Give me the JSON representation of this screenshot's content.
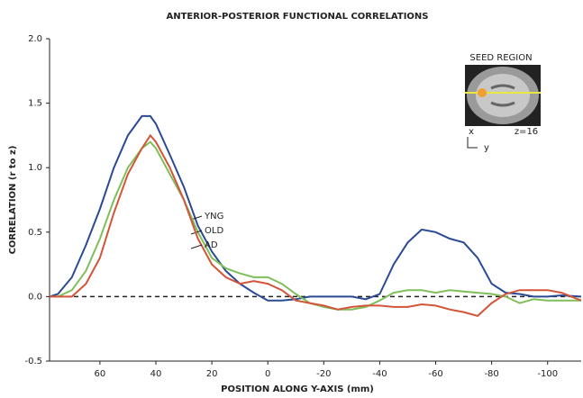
{
  "chart_data": {
    "type": "line",
    "title": "ANTERIOR-POSTERIOR FUNCTIONAL CORRELATIONS",
    "x_label": "POSITION ALONG Y-AXIS (mm)",
    "y_label": "CORRELATION (r to z)",
    "x": [
      78,
      75,
      70,
      65,
      60,
      55,
      50,
      45,
      42,
      40,
      35,
      30,
      25,
      20,
      15,
      10,
      5,
      0,
      -5,
      -10,
      -15,
      -20,
      -25,
      -30,
      -35,
      -40,
      -45,
      -50,
      -55,
      -60,
      -65,
      -70,
      -75,
      -80,
      -85,
      -90,
      -95,
      -100,
      -105,
      -112
    ],
    "series": [
      {
        "name": "YNG",
        "color": "#2b4a94",
        "values": [
          0,
          0.02,
          0.15,
          0.4,
          0.68,
          1.0,
          1.25,
          1.4,
          1.4,
          1.34,
          1.1,
          0.85,
          0.55,
          0.35,
          0.2,
          0.1,
          0.03,
          -0.03,
          -0.03,
          -0.02,
          0,
          0,
          0,
          0,
          -0.02,
          0.02,
          0.25,
          0.42,
          0.52,
          0.5,
          0.45,
          0.42,
          0.3,
          0.1,
          0.03,
          0.02,
          0,
          0,
          0.01,
          0
        ]
      },
      {
        "name": "OLD",
        "color": "#7fbf5a",
        "values": [
          0,
          0,
          0.05,
          0.2,
          0.45,
          0.75,
          1.0,
          1.15,
          1.2,
          1.15,
          0.95,
          0.75,
          0.5,
          0.3,
          0.22,
          0.18,
          0.15,
          0.15,
          0.1,
          0.02,
          -0.05,
          -0.08,
          -0.1,
          -0.1,
          -0.08,
          -0.03,
          0.03,
          0.05,
          0.05,
          0.03,
          0.05,
          0.04,
          0.03,
          0.02,
          0,
          -0.05,
          -0.02,
          -0.03,
          -0.03,
          -0.03
        ]
      },
      {
        "name": "AD",
        "color": "#d2553a",
        "values": [
          0,
          0,
          0,
          0.1,
          0.3,
          0.65,
          0.95,
          1.15,
          1.25,
          1.2,
          1.0,
          0.75,
          0.45,
          0.25,
          0.15,
          0.1,
          0.12,
          0.1,
          0.05,
          -0.03,
          -0.05,
          -0.07,
          -0.1,
          -0.08,
          -0.07,
          -0.07,
          -0.08,
          -0.08,
          -0.06,
          -0.07,
          -0.1,
          -0.12,
          -0.15,
          -0.05,
          0.02,
          0.05,
          0.05,
          0.05,
          0.03,
          -0.03
        ]
      }
    ],
    "xlim": [
      78,
      -112
    ],
    "xticks": [
      60,
      40,
      20,
      0,
      -20,
      -40,
      -60,
      -80,
      -100
    ],
    "ylim": [
      -0.5,
      2.0
    ],
    "yticks": [
      {
        "value": -0.5,
        "label": "-0.5"
      },
      {
        "value": 0,
        "label": "0.0"
      },
      {
        "value": 0.5,
        "label": "0.5"
      },
      {
        "value": 1.0,
        "label": "1.0"
      },
      {
        "value": 1.5,
        "label": "1.5"
      },
      {
        "value": 2.0,
        "label": "2.0"
      }
    ],
    "inset": {
      "title": "SEED REGION",
      "x_label": "x",
      "y_label": "y",
      "z_label": "z=16"
    }
  }
}
